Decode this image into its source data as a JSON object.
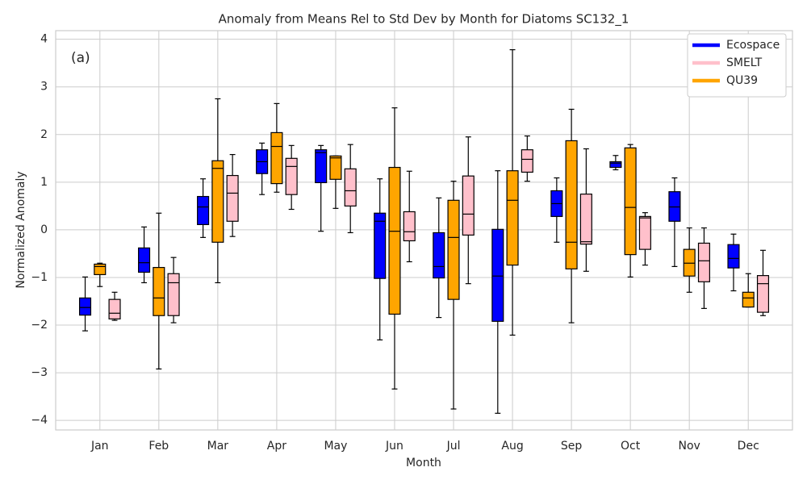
{
  "chart_data": {
    "type": "box",
    "title": "Anomaly from Means Rel to Std Dev by Month for Diatoms SC132_1",
    "annotation": "(a)",
    "x_label": "Month",
    "y_label": "Normalized Anomaly",
    "categories": [
      "Jan",
      "Feb",
      "Mar",
      "Apr",
      "May",
      "Jun",
      "Jul",
      "Aug",
      "Sep",
      "Oct",
      "Nov",
      "Dec"
    ],
    "ylim": [
      -4.2,
      4.18
    ],
    "yticks": [
      {
        "value": -4,
        "label": "−4"
      },
      {
        "value": -3,
        "label": "−3"
      },
      {
        "value": -2,
        "label": "−2"
      },
      {
        "value": -1,
        "label": "−1"
      },
      0,
      1,
      2,
      3,
      4
    ],
    "grid": true,
    "legend": "upper right",
    "series": [
      {
        "name": "Ecospace",
        "color": "#0000ff",
        "low": [
          -2.12,
          -1.11,
          -0.16,
          0.74,
          -0.03,
          -2.31,
          -1.84,
          -3.85,
          -0.26,
          1.26,
          -0.77,
          -1.28
        ],
        "q1": [
          -1.79,
          -0.89,
          0.11,
          1.18,
          0.99,
          -1.02,
          -1.01,
          -1.92,
          0.28,
          1.31,
          0.18,
          -0.8
        ],
        "median": [
          -1.63,
          -0.69,
          0.48,
          1.43,
          1.62,
          0.18,
          -0.77,
          -0.97,
          0.55,
          1.4,
          0.48,
          -0.6
        ],
        "q3": [
          -1.43,
          -0.38,
          0.7,
          1.68,
          1.68,
          0.35,
          -0.06,
          0.01,
          0.82,
          1.43,
          0.8,
          -0.31
        ],
        "high": [
          -0.99,
          0.06,
          1.07,
          1.82,
          1.77,
          1.07,
          0.67,
          1.24,
          1.09,
          1.56,
          1.09,
          -0.09
        ]
      },
      {
        "name": "QU39",
        "color": "#ffa500",
        "low": [
          -1.19,
          -2.92,
          -1.11,
          0.79,
          0.45,
          -3.34,
          -3.76,
          -2.21,
          -1.95,
          -0.99,
          -1.31,
          -1.62
        ],
        "q1": [
          -0.94,
          -1.8,
          -0.26,
          0.97,
          1.06,
          -1.77,
          -1.46,
          -0.74,
          -0.82,
          -0.52,
          -0.97,
          -1.62
        ],
        "median": [
          -0.77,
          -1.43,
          1.29,
          1.75,
          1.51,
          -0.03,
          -0.16,
          0.62,
          -0.26,
          0.47,
          -0.7,
          -1.43
        ],
        "q3": [
          -0.72,
          -0.79,
          1.45,
          2.04,
          1.55,
          1.31,
          0.62,
          1.24,
          1.87,
          1.72,
          -0.41,
          -1.31
        ],
        "high": [
          -0.7,
          0.35,
          2.75,
          2.65,
          1.55,
          2.56,
          1.02,
          3.78,
          2.53,
          1.79,
          0.04,
          -0.92
        ]
      },
      {
        "name": "SMELT",
        "color": "#ffc0cb",
        "low": [
          -1.9,
          -1.95,
          -0.14,
          0.43,
          -0.06,
          -0.67,
          -1.13,
          1.02,
          -0.87,
          -0.74,
          -1.65,
          -1.8
        ],
        "q1": [
          -1.87,
          -1.8,
          0.18,
          0.74,
          0.5,
          -0.23,
          -0.11,
          1.21,
          -0.3,
          -0.41,
          -1.09,
          -1.73
        ],
        "median": [
          -1.75,
          -1.11,
          0.77,
          1.33,
          0.82,
          -0.04,
          0.33,
          1.48,
          -0.25,
          0.25,
          -0.65,
          -1.13
        ],
        "q3": [
          -1.46,
          -0.92,
          1.14,
          1.5,
          1.28,
          0.38,
          1.13,
          1.68,
          0.75,
          0.28,
          -0.28,
          -0.96
        ],
        "high": [
          -1.31,
          -0.58,
          1.58,
          1.77,
          1.79,
          1.23,
          1.95,
          1.97,
          1.7,
          0.36,
          0.04,
          -0.43
        ]
      }
    ]
  }
}
